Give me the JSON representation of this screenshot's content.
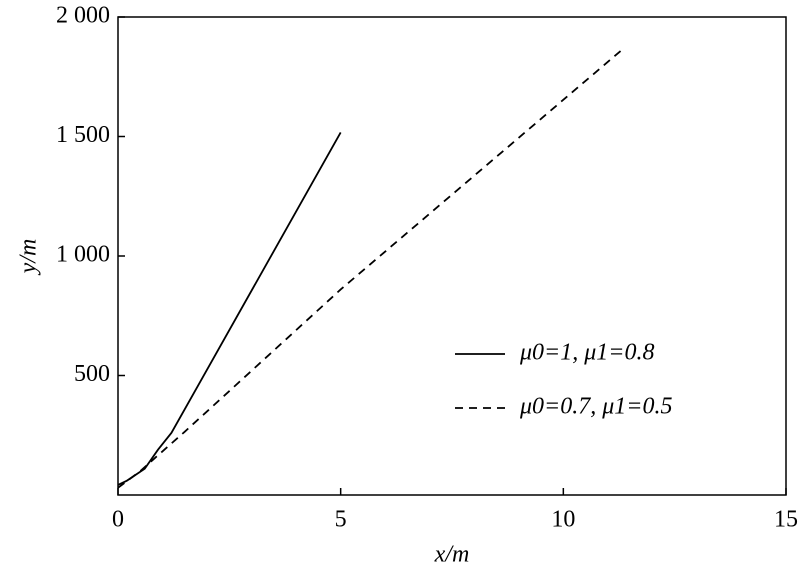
{
  "chart_data": {
    "type": "line",
    "x_label": "x/m",
    "y_label": "y/m",
    "xlim": [
      0,
      15
    ],
    "xticks": [
      0,
      5,
      10,
      15
    ],
    "ylim": [
      0,
      2000
    ],
    "yticks": [
      500,
      {
        "value": 1000,
        "label": "1 000"
      },
      {
        "value": 1500,
        "label": "1 500"
      },
      {
        "value": 2000,
        "label": "2 000"
      }
    ],
    "legend_position": "right",
    "series": [
      {
        "name": "μ0=1, μ1=0.8",
        "color": "#000000",
        "dash": "solid",
        "x": [
          0,
          0.2,
          0.6,
          0.9,
          1.2,
          5
        ],
        "values": [
          42,
          60,
          110,
          190,
          260,
          1517
        ]
      },
      {
        "name": "μ0=0.7, μ1=0.5",
        "color": "#000000",
        "dash": "dashed",
        "x": [
          0,
          0.5,
          0.8,
          1.5,
          5,
          11.3
        ],
        "values": [
          30,
          100,
          150,
          265,
          860,
          1860
        ]
      }
    ]
  }
}
